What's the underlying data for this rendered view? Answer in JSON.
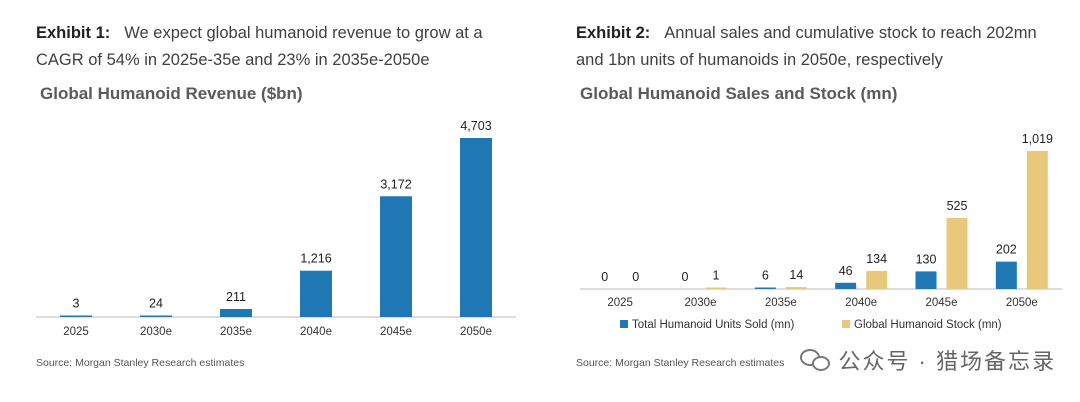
{
  "exhibit1": {
    "label": "Exhibit 1:",
    "text": "We expect global humanoid revenue to grow at a CAGR of 54% in 2025e-35e and 23% in 2035e-2050e",
    "source": "Source: Morgan Stanley Research estimates"
  },
  "exhibit2": {
    "label": "Exhibit 2:",
    "text": "Annual sales and cumulative stock to reach 202mn and 1bn units of humanoids in 2050e, respectively",
    "source": "Source: Morgan Stanley Research estimates"
  },
  "watermark": "公众号 · 猎场备忘录",
  "colors": {
    "blue": "#1f77b4",
    "tan": "#e9c77b"
  },
  "chart_data": [
    {
      "type": "bar",
      "title": "Global Humanoid Revenue ($bn)",
      "categories": [
        "2025",
        "2030e",
        "2035e",
        "2040e",
        "2045e",
        "2050e"
      ],
      "values": [
        3,
        24,
        211,
        1216,
        3172,
        4703
      ],
      "data_labels": [
        "3",
        "24",
        "211",
        "1,216",
        "3,172",
        "4,703"
      ],
      "ylim": [
        0,
        4703
      ],
      "grid": false
    },
    {
      "type": "bar",
      "title": "Global Humanoid Sales and Stock (mn)",
      "categories": [
        "2025",
        "2030e",
        "2035e",
        "2040e",
        "2045e",
        "2050e"
      ],
      "series": [
        {
          "name": "Total Humanoid Units Sold (mn)",
          "values": [
            0,
            0,
            6,
            46,
            130,
            202
          ],
          "data_labels": [
            "0",
            "0",
            "6",
            "46",
            "130",
            "202"
          ]
        },
        {
          "name": "Global Humanoid Stock (mn)",
          "values": [
            0,
            1,
            14,
            134,
            525,
            1019
          ],
          "data_labels": [
            "0",
            "1",
            "14",
            "134",
            "525",
            "1,019"
          ]
        }
      ],
      "ylim": [
        0,
        1019
      ],
      "legend": "bottom",
      "grid": false
    }
  ]
}
